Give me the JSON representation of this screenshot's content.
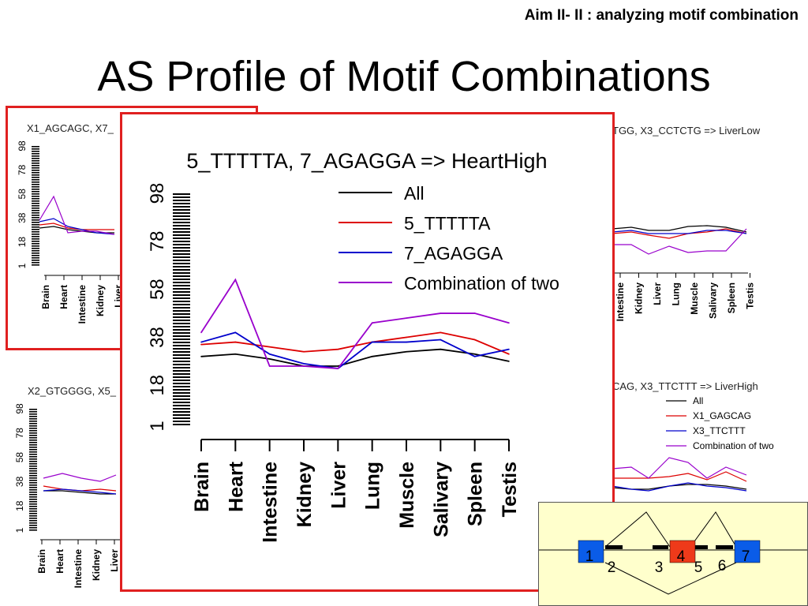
{
  "header": {
    "aim": "Aim II- II : analyzing motif combination",
    "title": "AS Profile of Motif Combinations"
  },
  "panels": {
    "top_left_title": "X1_AGCAGC, X7_",
    "top_right_title": "TGG, X3_CCTCTG  =>  LiverLow",
    "bottom_left_title": "X2_GTGGGG, X5_",
    "bottom_right_title": "CAG, X3_TTCTTT  =>  LiverHigh",
    "bottom_right_legend": [
      "All",
      "X1_GAGCAG",
      "X3_TTCTTT",
      "Combination of two"
    ]
  },
  "partial_ticks": [
    "1",
    "18",
    "38",
    "58",
    "78",
    "98"
  ],
  "partial_tissues_left": [
    "Brain",
    "Heart",
    "Intestine",
    "Kidney",
    "Liver"
  ],
  "partial_tissues_right": [
    "Intestine",
    "Kidney",
    "Liver",
    "Lung",
    "Muscle",
    "Salivary",
    "Spleen",
    "Testis"
  ],
  "diagram": {
    "exon_labels": [
      "1",
      "4",
      "7"
    ],
    "intron_labels": [
      "2",
      "3",
      "5",
      "6"
    ]
  },
  "colors": {
    "all": "#000000",
    "motif1": "#dd0000",
    "motif2": "#0000cc",
    "combo": "#9900cc",
    "border": "#e02020",
    "exon_blue": "#0a5ce8",
    "exon_red": "#ee3a1a",
    "diagram_bg": "#ffffcc"
  },
  "chart_data": {
    "type": "line",
    "title": "5_TTTTTA,  7_AGAGGA => HeartHigh",
    "categories": [
      "Brain",
      "Heart",
      "Intestine",
      "Kidney",
      "Liver",
      "Lung",
      "Muscle",
      "Salivary",
      "Spleen",
      "Testis"
    ],
    "yticks": [
      "1",
      "18",
      "38",
      "58",
      "78",
      "98"
    ],
    "ylim": [
      1,
      98
    ],
    "series": [
      {
        "name": "All",
        "values": [
          30,
          31,
          29,
          26,
          26,
          30,
          32,
          33,
          31,
          28
        ]
      },
      {
        "name": "5_TTTTTA",
        "values": [
          35,
          36,
          34,
          32,
          33,
          36,
          38,
          40,
          37,
          31
        ]
      },
      {
        "name": "7_AGAGGA",
        "values": [
          36,
          40,
          31,
          27,
          25,
          36,
          36,
          37,
          30,
          33
        ]
      },
      {
        "name": "Combination of two",
        "values": [
          40,
          62,
          26,
          26,
          25,
          44,
          46,
          48,
          48,
          44
        ]
      }
    ],
    "legend_position": "top-right"
  }
}
